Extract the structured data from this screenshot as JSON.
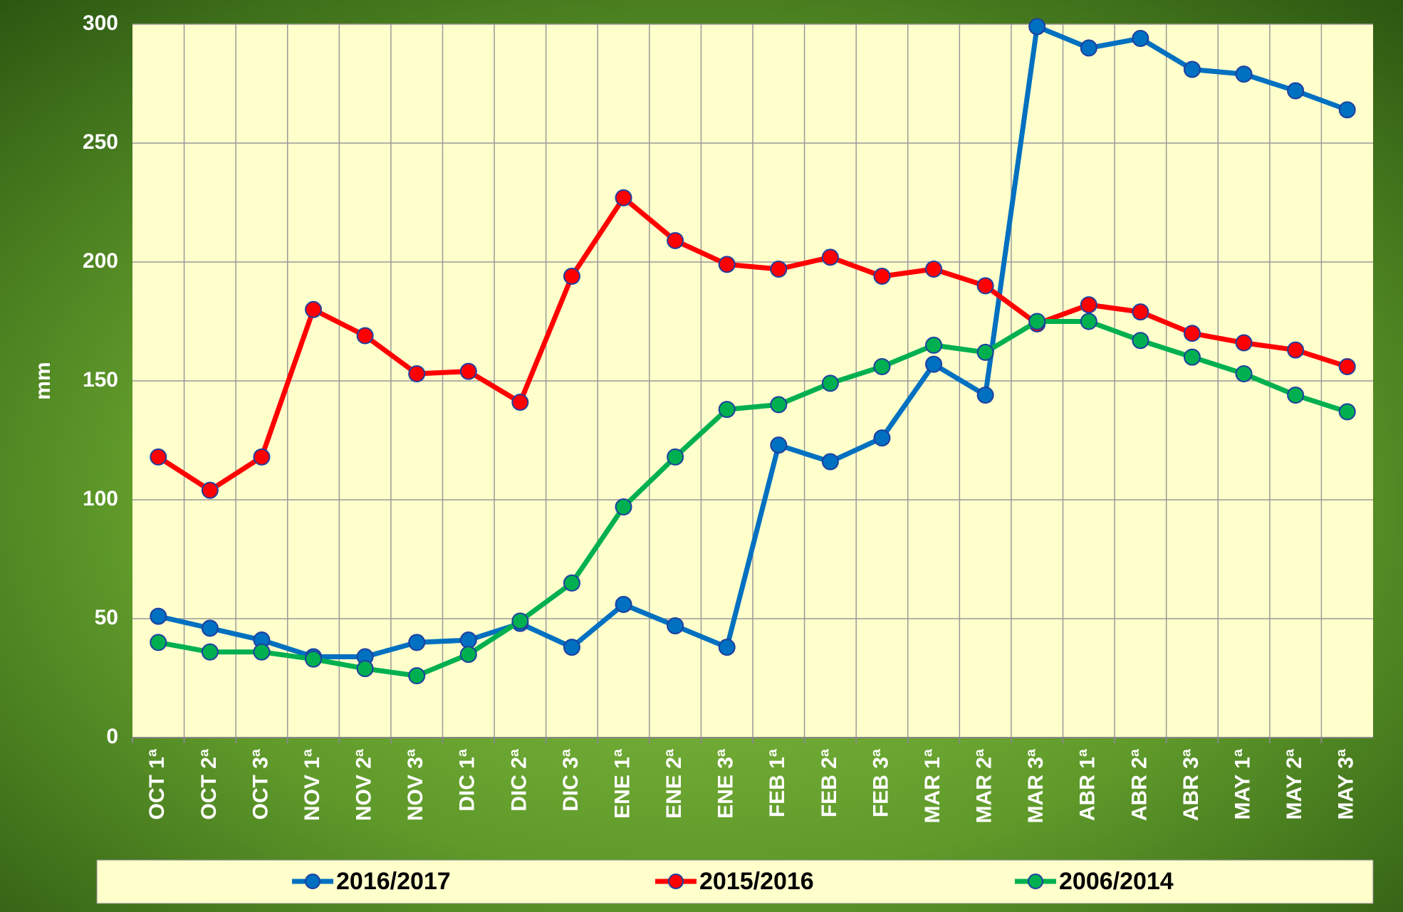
{
  "chart_data": {
    "type": "line",
    "y_label": "mm",
    "categories": [
      "OCT 1ª",
      "OCT 2ª",
      "OCT 3ª",
      "NOV 1ª",
      "NOV 2ª",
      "NOV 3ª",
      "DIC 1ª",
      "DIC 2ª",
      "DIC 3ª",
      "ENE 1ª",
      "ENE 2ª",
      "ENE 3ª",
      "FEB 1ª",
      "FEB 2ª",
      "FEB 3ª",
      "MAR 1ª",
      "MAR 2ª",
      "MAR 3ª",
      "ABR 1ª",
      "ABR 2ª",
      "ABR 3ª",
      "MAY 1ª",
      "MAY 2ª",
      "MAY 3ª"
    ],
    "series": [
      {
        "name": "2016/2017",
        "color": "#0070c0",
        "values": [
          51,
          46,
          41,
          34,
          34,
          40,
          41,
          48,
          38,
          56,
          47,
          38,
          123,
          116,
          126,
          157,
          144,
          299,
          290,
          294,
          281,
          279,
          272,
          264
        ]
      },
      {
        "name": "2015/2016",
        "color": "#ff0000",
        "values": [
          118,
          104,
          118,
          180,
          169,
          153,
          154,
          141,
          194,
          227,
          209,
          199,
          197,
          202,
          194,
          197,
          190,
          174,
          182,
          179,
          170,
          166,
          163,
          156
        ]
      },
      {
        "name": "2006/2014",
        "color": "#00b050",
        "values": [
          40,
          36,
          36,
          33,
          29,
          26,
          35,
          49,
          65,
          97,
          118,
          138,
          140,
          149,
          156,
          165,
          162,
          175,
          175,
          167,
          160,
          153,
          144,
          137
        ]
      }
    ],
    "ylim": [
      0,
      300
    ],
    "yticks": [
      0,
      50,
      100,
      150,
      200,
      250,
      300
    ],
    "grid": true,
    "legend": "bottom"
  }
}
